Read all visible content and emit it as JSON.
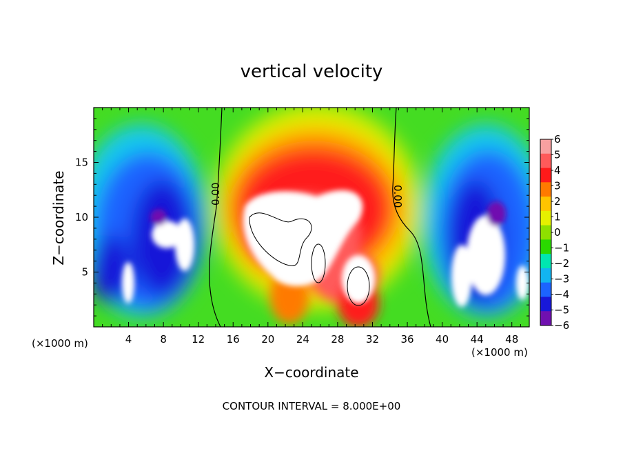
{
  "chart_data": {
    "type": "heatmap",
    "title": "vertical velocity",
    "xlabel": "X−coordinate",
    "ylabel": "Z−coordinate",
    "x_unit_left": "(×1000 m)",
    "x_unit_right": "(×1000 m)",
    "xlim": [
      0,
      50
    ],
    "ylim": [
      0,
      20
    ],
    "x_ticks": [
      "4",
      "8",
      "12",
      "16",
      "20",
      "24",
      "28",
      "32",
      "36",
      "40",
      "44",
      "48"
    ],
    "x_tick_values": [
      4,
      8,
      12,
      16,
      20,
      24,
      28,
      32,
      36,
      40,
      44,
      48
    ],
    "y_ticks": [
      "5",
      "10",
      "15"
    ],
    "y_tick_values": [
      5,
      10,
      15
    ],
    "footer": "CONTOUR INTERVAL = 8.000E+00",
    "contour_labels": [
      {
        "text": "0.00",
        "x": 13.5,
        "z": 12.5
      },
      {
        "text": "0.00",
        "x": 34.5,
        "z": 12.0
      }
    ],
    "colorbar": {
      "labels": [
        "6",
        "5",
        "4",
        "3",
        "2",
        "1",
        "0",
        "−1",
        "−2",
        "−3",
        "−4",
        "−5",
        "−6"
      ],
      "values": [
        6,
        5,
        4,
        3,
        2,
        1,
        0,
        -1,
        -2,
        -3,
        -4,
        -5,
        -6
      ],
      "colors": [
        "#f8a0a0",
        "#ff5a5a",
        "#ff1a1a",
        "#ff7a00",
        "#ffc400",
        "#e6f000",
        "#8ee000",
        "#2ad800",
        "#00e6b0",
        "#12b4f0",
        "#1c64ff",
        "#1818d8",
        "#7010b0"
      ]
    },
    "features": [
      {
        "name": "central updraft core",
        "x_range": [
          15,
          37
        ],
        "z_range": [
          2,
          15
        ],
        "max_value": 6
      },
      {
        "name": "left downdraft",
        "x_range": [
          0,
          13
        ],
        "z_range": [
          1,
          17
        ],
        "min_value": -6
      },
      {
        "name": "right downdraft",
        "x_range": [
          38,
          50
        ],
        "z_range": [
          1,
          17
        ],
        "min_value": -6
      }
    ]
  }
}
